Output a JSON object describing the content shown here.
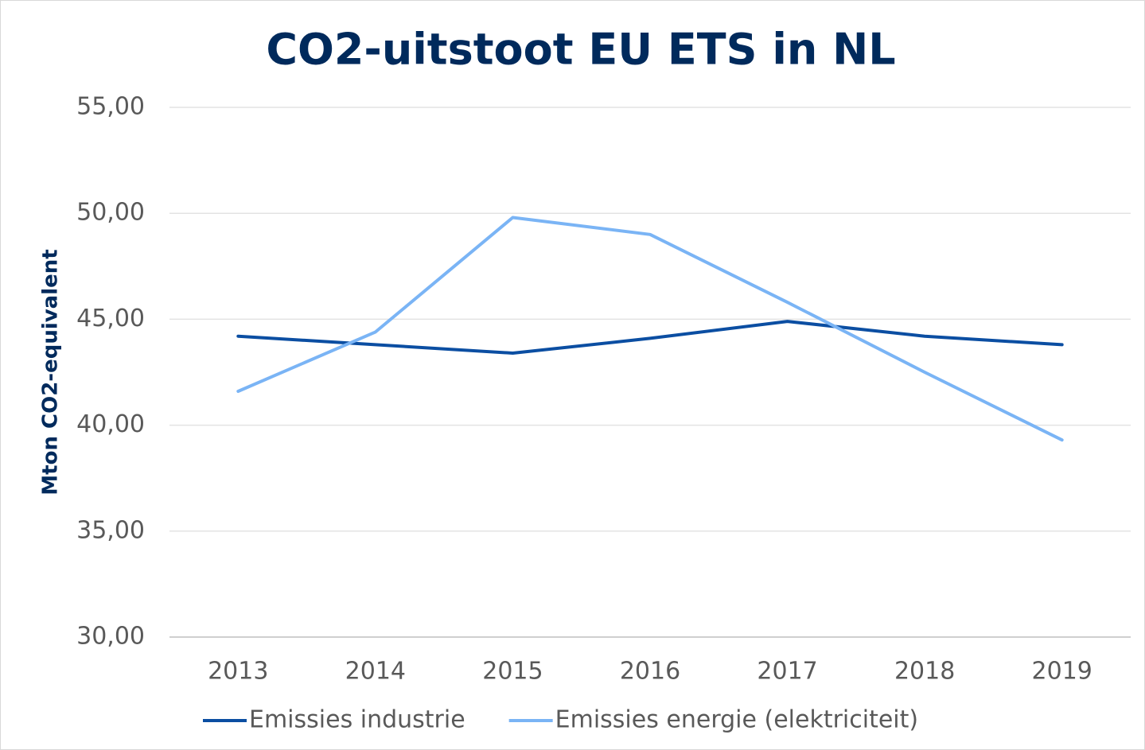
{
  "chart_data": {
    "type": "line",
    "title": "CO2-uitstoot EU ETS in NL",
    "y_label": "Mton CO2-equivalent",
    "categories": [
      "2013",
      "2014",
      "2015",
      "2016",
      "2017",
      "2018",
      "2019"
    ],
    "series": [
      {
        "name": "Emissies industrie",
        "color": "#0b4ea2",
        "values": [
          44.2,
          43.8,
          43.4,
          44.1,
          44.9,
          44.2,
          43.8
        ]
      },
      {
        "name": "Emissies energie (elektriciteit)",
        "color": "#7ab4f5",
        "values": [
          41.6,
          44.4,
          49.8,
          49.0,
          45.8,
          42.5,
          39.3
        ]
      }
    ],
    "ylim": [
      30,
      55
    ],
    "yticks": [
      {
        "value": 30,
        "label": "30,00"
      },
      {
        "value": 35,
        "label": "35,00"
      },
      {
        "value": 40,
        "label": "40,00"
      },
      {
        "value": 45,
        "label": "45,00"
      },
      {
        "value": 50,
        "label": "50,00"
      },
      {
        "value": 55,
        "label": "55,00"
      }
    ],
    "grid": true,
    "legend": "bottom"
  }
}
